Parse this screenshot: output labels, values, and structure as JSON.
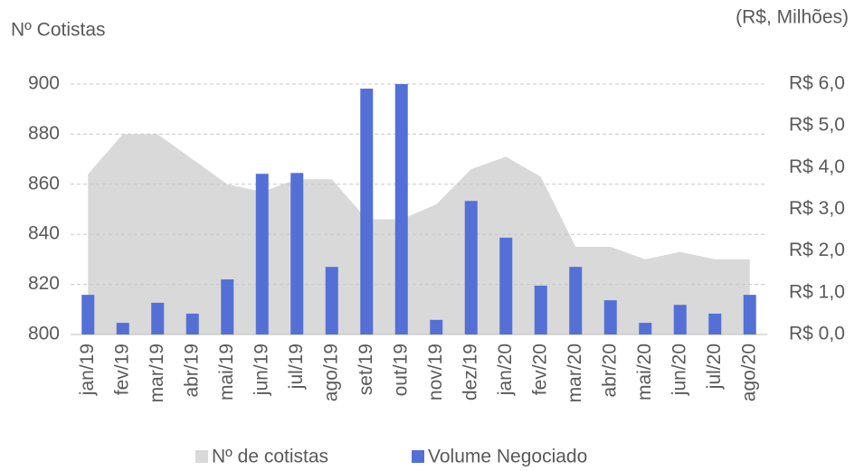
{
  "chart_data": {
    "type": "bar_area_combo",
    "y_label": "Nº Cotistas",
    "y2_label": "(R$, Milhões)",
    "categories": [
      "jan/19",
      "fev/19",
      "mar/19",
      "abr/19",
      "mai/19",
      "jun/19",
      "jul/19",
      "ago/19",
      "set/19",
      "out/19",
      "nov/19",
      "dez/19",
      "jan/20",
      "fev/20",
      "mar/20",
      "abr/20",
      "mai/20",
      "jun/20",
      "jul/20",
      "ago/20"
    ],
    "series": [
      {
        "name": "Nº de cotistas",
        "type": "area",
        "color": "#d9d9d9",
        "axis": "y",
        "values": [
          864,
          880,
          880,
          870,
          860,
          857,
          862,
          862,
          846,
          846,
          852,
          866,
          871,
          863,
          835,
          835,
          830,
          833,
          830,
          830
        ]
      },
      {
        "name": "Volume Negociado",
        "type": "bar",
        "color": "#5470d6",
        "axis": "y2",
        "values": [
          0.95,
          0.28,
          0.76,
          0.5,
          1.32,
          3.85,
          3.87,
          1.62,
          5.89,
          6.0,
          0.35,
          3.2,
          2.32,
          1.17,
          1.62,
          0.82,
          0.28,
          0.71,
          0.5,
          0.95
        ]
      }
    ],
    "ylim": [
      800,
      900
    ],
    "yticks": [
      800,
      820,
      840,
      860,
      880,
      900
    ],
    "y2lim": [
      0,
      6
    ],
    "y2ticks": [
      {
        "value": 0,
        "label": "R$ 0,0"
      },
      {
        "value": 1,
        "label": "R$ 1,0"
      },
      {
        "value": 2,
        "label": "R$ 2,0"
      },
      {
        "value": 3,
        "label": "R$ 3,0"
      },
      {
        "value": 4,
        "label": "R$ 4,0"
      },
      {
        "value": 5,
        "label": "R$ 5,0"
      },
      {
        "value": 6,
        "label": "R$ 6,0"
      }
    ],
    "grid": true,
    "legend": "bottom"
  }
}
